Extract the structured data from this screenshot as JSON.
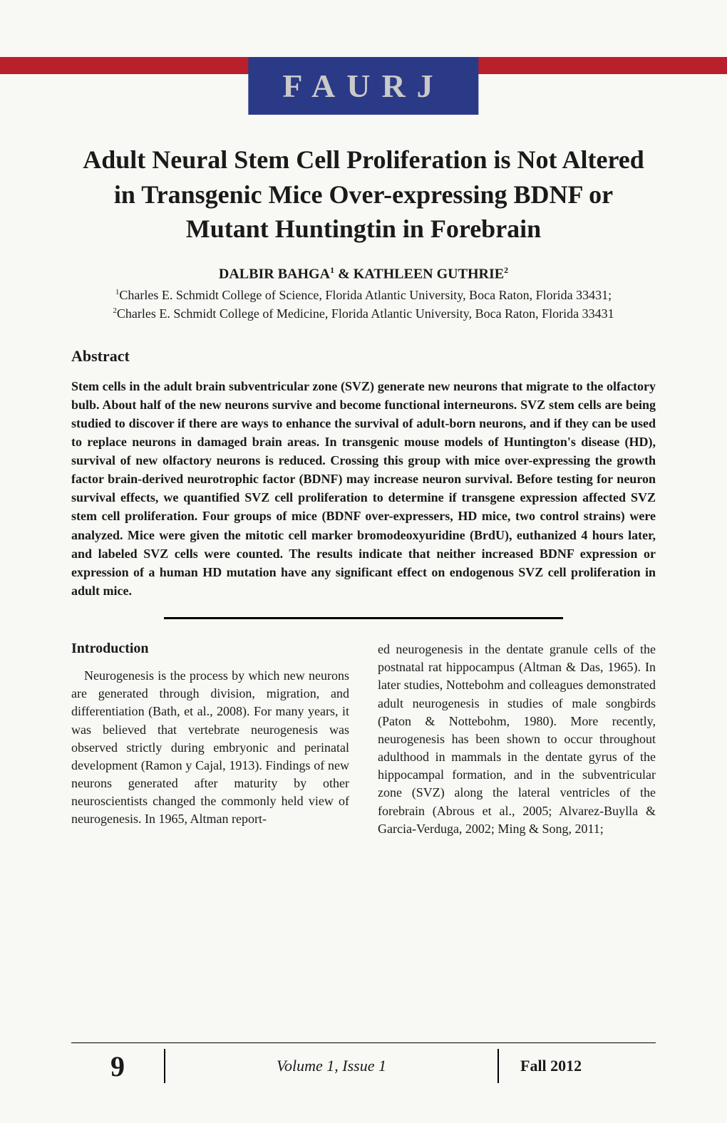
{
  "colors": {
    "red_bar": "#b9202b",
    "logo_bg": "#2b3a87",
    "logo_text": "#c9c9c9",
    "page_bg": "#f8f8f5",
    "text": "#1a1a1a"
  },
  "header": {
    "journal_code": "FAURJ"
  },
  "article": {
    "title": "Adult Neural Stem Cell Proliferation is Not Altered in Transgenic Mice Over-expressing BDNF or Mutant Huntingtin in Forebrain",
    "authors_html": "DALBIR BAHGA¹ & KATHLEEN GUTHRIE²",
    "author1": "DALBIR BAHGA",
    "author1_sup": "1",
    "amp": " & ",
    "author2": "KATHLEEN GUTHRIE",
    "author2_sup": "2",
    "affil1_sup": "1",
    "affil1": "Charles E. Schmidt College of Science, Florida Atlantic University, Boca Raton, Florida 33431; ",
    "affil2_sup": "2",
    "affil2": "Charles E. Schmidt College of Medicine, Florida Atlantic University, Boca Raton, Florida 33431",
    "abstract_heading": "Abstract",
    "abstract_body": "Stem cells in the adult brain subventricular zone (SVZ) generate new neurons that migrate to the olfactory bulb.  About half of the new neurons survive and become functional interneurons.  SVZ stem cells are being studied to discover if there are ways to enhance the survival of adult-born neurons, and if they can be used to replace neurons in damaged brain areas. In transgenic mouse models of Huntington's disease (HD), survival of new olfactory neurons is reduced.  Crossing this group with mice over-expressing the growth factor brain-derived neurotrophic factor (BDNF) may increase neuron survival.  Before testing for neuron survival effects, we quantified SVZ cell proliferation to determine if transgene expression affected SVZ stem cell proliferation.  Four groups of mice (BDNF over-expressers, HD mice, two control strains) were analyzed. Mice were given the mitotic cell marker bromodeoxyuridine (BrdU), euthanized 4 hours later, and labeled SVZ cells were counted. The results indicate that neither increased BDNF expression or expression of a human HD mutation have any significant effect on endogenous SVZ cell proliferation in adult mice.",
    "intro_heading": "Introduction",
    "intro_col1": "Neurogenesis is the process by which new neurons are generated through division, migration, and differentiation (Bath, et al., 2008). For many years, it was believed that vertebrate neurogenesis was observed strictly during embryonic and perinatal development (Ramon y Cajal, 1913). Findings of new neurons generated after maturity by other neuroscientists changed the commonly held view of neurogenesis.  In 1965, Altman report-",
    "intro_col2": "ed neurogenesis in the dentate granule cells of the postnatal rat hippocampus (Altman & Das, 1965). In later studies, Nottebohm and colleagues demonstrated adult neurogenesis in studies of male songbirds (Paton & Nottebohm, 1980). More recently, neurogenesis has been shown to occur throughout adulthood in mammals in the dentate gyrus of the hippocampal formation, and in the subventricular zone (SVZ) along the lateral ventricles of the forebrain (Abrous et al., 2005; Alvarez-Buylla & Garcia-Verduga, 2002;  Ming & Song, 2011;"
  },
  "footer": {
    "page": "9",
    "volume": "Volume 1, Issue 1",
    "term": "Fall 2012"
  }
}
